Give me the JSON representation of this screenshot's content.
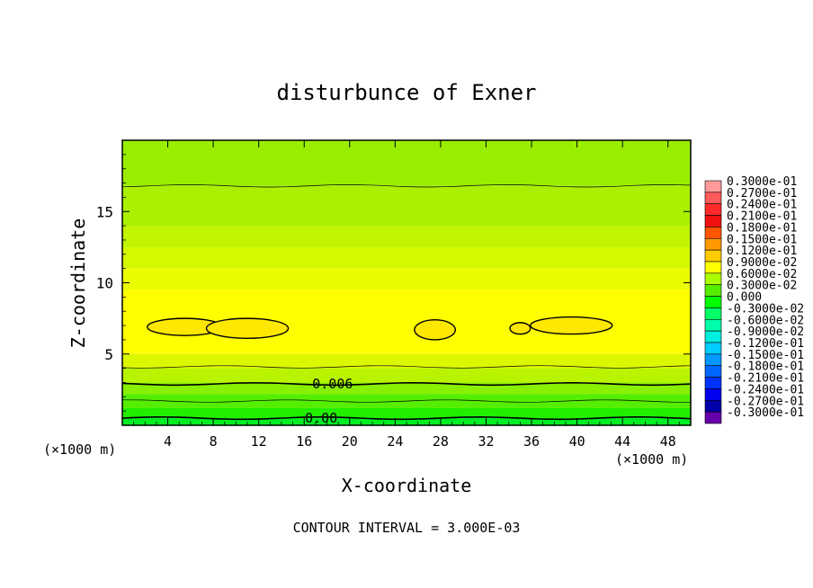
{
  "chart_data": {
    "type": "heatmap",
    "title": "disturbunce of Exner",
    "xlabel": "X-coordinate",
    "ylabel": "Z-coordinate",
    "x_unit_left": "(×1000 m)",
    "x_unit_right": "(×1000 m)",
    "xlim": [
      0,
      50
    ],
    "ylim": [
      0,
      20
    ],
    "x_ticks": [
      4,
      8,
      12,
      16,
      20,
      24,
      28,
      32,
      36,
      40,
      44,
      48
    ],
    "y_ticks": [
      5,
      10,
      15
    ],
    "footer": "CONTOUR INTERVAL = 3.000E-03",
    "contour_interval": 0.003,
    "contour_labels": [
      {
        "text": "0.006",
        "x": 18.5,
        "y": 2.9
      },
      {
        "text": "0.00",
        "x": 17.5,
        "y": 0.5
      }
    ],
    "legend_labels": [
      "0.3000e-01",
      "0.2700e-01",
      "0.2400e-01",
      "0.2100e-01",
      "0.1800e-01",
      "0.1500e-01",
      "0.1200e-01",
      "0.9000e-02",
      "0.6000e-02",
      "0.3000e-02",
      "0.000",
      "-0.3000e-02",
      "-0.6000e-02",
      "-0.9000e-02",
      "-0.1200e-01",
      "-0.1500e-01",
      "-0.1800e-01",
      "-0.2100e-01",
      "-0.2400e-01",
      "-0.2700e-01",
      "-0.3000e-01"
    ],
    "legend_colors": [
      "#ff9a9a",
      "#ff5a5a",
      "#ff2a2a",
      "#f01010",
      "#ff5500",
      "#ff9900",
      "#ffcc00",
      "#ffff00",
      "#aaff00",
      "#55ee00",
      "#00ff00",
      "#00ff66",
      "#00ffaa",
      "#00eedd",
      "#00ccff",
      "#0099ff",
      "#0066ff",
      "#0033ff",
      "#0000ee",
      "#0000aa",
      "#6600aa"
    ],
    "field_bands": [
      {
        "z_from": 0,
        "z_to": 0.5,
        "color": "#00ee22"
      },
      {
        "z_from": 0.5,
        "z_to": 1.2,
        "color": "#22ee00"
      },
      {
        "z_from": 1.2,
        "z_to": 2.2,
        "color": "#55ee00"
      },
      {
        "z_from": 2.2,
        "z_to": 3.0,
        "color": "#88f000"
      },
      {
        "z_from": 3.0,
        "z_to": 4.0,
        "color": "#b8f400"
      },
      {
        "z_from": 4.0,
        "z_to": 5.0,
        "color": "#dcf800"
      },
      {
        "z_from": 5.0,
        "z_to": 9.5,
        "color": "#ffff00"
      },
      {
        "z_from": 9.5,
        "z_to": 11.0,
        "color": "#eafc00"
      },
      {
        "z_from": 11.0,
        "z_to": 12.5,
        "color": "#d4f800"
      },
      {
        "z_from": 12.5,
        "z_to": 14.0,
        "color": "#c0f400"
      },
      {
        "z_from": 14.0,
        "z_to": 16.8,
        "color": "#aaf000"
      },
      {
        "z_from": 16.8,
        "z_to": 20.0,
        "color": "#99ee00"
      }
    ],
    "contour_lines": [
      {
        "z": 0.5,
        "weight": "bold"
      },
      {
        "z": 1.7,
        "weight": "thin"
      },
      {
        "z": 2.9,
        "weight": "bold"
      },
      {
        "z": 4.1,
        "weight": "thin"
      },
      {
        "z": 16.8,
        "weight": "thin"
      }
    ],
    "max_cells": [
      {
        "x_center": 5.5,
        "z_center": 6.9,
        "x_half": 3.3,
        "z_half": 0.6
      },
      {
        "x_center": 11.0,
        "z_center": 6.8,
        "x_half": 3.6,
        "z_half": 0.7
      },
      {
        "x_center": 27.5,
        "z_center": 6.7,
        "x_half": 1.8,
        "z_half": 0.7
      },
      {
        "x_center": 35.0,
        "z_center": 6.8,
        "x_half": 0.9,
        "z_half": 0.4
      },
      {
        "x_center": 39.5,
        "z_center": 7.0,
        "x_half": 3.6,
        "z_half": 0.6
      }
    ]
  }
}
